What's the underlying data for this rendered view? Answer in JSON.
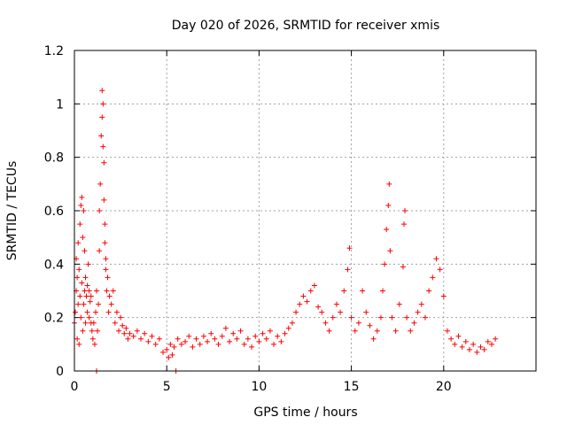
{
  "chart_data": {
    "type": "scatter",
    "title": "Day 020 of 2026, SRMTID for receiver xmis",
    "xlabel": "GPS time / hours",
    "ylabel": "SRMTID / TECUs",
    "xlim": [
      0,
      25
    ],
    "ylim": [
      0,
      1.2
    ],
    "xticks": [
      0,
      5,
      10,
      15,
      20
    ],
    "xtick_labels": [
      "0",
      "5",
      "10",
      "15",
      "20"
    ],
    "yticks": [
      0,
      0.2,
      0.4,
      0.6,
      0.8,
      1.0,
      1.2
    ],
    "ytick_labels": [
      "0",
      "0.2",
      "0.4",
      "0.6",
      "0.8",
      "1",
      "1.2"
    ],
    "grid": true,
    "marker": "+",
    "series": [
      {
        "name": "SRMTID",
        "color": "#ff0000",
        "points": [
          [
            0.0,
            0.18
          ],
          [
            0.05,
            0.22
          ],
          [
            0.1,
            0.3
          ],
          [
            0.1,
            0.42
          ],
          [
            0.15,
            0.35
          ],
          [
            0.15,
            0.12
          ],
          [
            0.2,
            0.25
          ],
          [
            0.2,
            0.48
          ],
          [
            0.25,
            0.38
          ],
          [
            0.25,
            0.1
          ],
          [
            0.3,
            0.55
          ],
          [
            0.3,
            0.28
          ],
          [
            0.35,
            0.62
          ],
          [
            0.35,
            0.2
          ],
          [
            0.4,
            0.65
          ],
          [
            0.4,
            0.33
          ],
          [
            0.45,
            0.5
          ],
          [
            0.45,
            0.15
          ],
          [
            0.5,
            0.6
          ],
          [
            0.5,
            0.25
          ],
          [
            0.55,
            0.45
          ],
          [
            0.55,
            0.3
          ],
          [
            0.6,
            0.35
          ],
          [
            0.6,
            0.18
          ],
          [
            0.65,
            0.28
          ],
          [
            0.7,
            0.22
          ],
          [
            0.7,
            0.32
          ],
          [
            0.75,
            0.4
          ],
          [
            0.8,
            0.3
          ],
          [
            0.8,
            0.2
          ],
          [
            0.85,
            0.26
          ],
          [
            0.9,
            0.18
          ],
          [
            0.9,
            0.28
          ],
          [
            0.95,
            0.15
          ],
          [
            1.0,
            0.12
          ],
          [
            1.05,
            0.18
          ],
          [
            1.1,
            0.1
          ],
          [
            1.15,
            0.22
          ],
          [
            1.2,
            0.3
          ],
          [
            1.2,
            0.0
          ],
          [
            1.25,
            0.15
          ],
          [
            1.3,
            0.25
          ],
          [
            1.35,
            0.45
          ],
          [
            1.35,
            0.6
          ],
          [
            1.4,
            0.7
          ],
          [
            1.45,
            0.88
          ],
          [
            1.5,
            1.05
          ],
          [
            1.5,
            0.95
          ],
          [
            1.55,
            1.0
          ],
          [
            1.55,
            0.84
          ],
          [
            1.6,
            0.78
          ],
          [
            1.6,
            0.64
          ],
          [
            1.65,
            0.55
          ],
          [
            1.65,
            0.48
          ],
          [
            1.7,
            0.42
          ],
          [
            1.7,
            0.38
          ],
          [
            1.75,
            0.3
          ],
          [
            1.8,
            0.35
          ],
          [
            1.85,
            0.22
          ],
          [
            1.9,
            0.28
          ],
          [
            2.0,
            0.25
          ],
          [
            2.1,
            0.3
          ],
          [
            2.2,
            0.18
          ],
          [
            2.3,
            0.22
          ],
          [
            2.4,
            0.15
          ],
          [
            2.5,
            0.2
          ],
          [
            2.6,
            0.17
          ],
          [
            2.7,
            0.14
          ],
          [
            2.8,
            0.16
          ],
          [
            2.9,
            0.12
          ],
          [
            3.0,
            0.14
          ],
          [
            3.2,
            0.13
          ],
          [
            3.4,
            0.15
          ],
          [
            3.6,
            0.12
          ],
          [
            3.8,
            0.14
          ],
          [
            4.0,
            0.11
          ],
          [
            4.2,
            0.13
          ],
          [
            4.4,
            0.1
          ],
          [
            4.6,
            0.12
          ],
          [
            4.8,
            0.07
          ],
          [
            5.0,
            0.08
          ],
          [
            5.1,
            0.05
          ],
          [
            5.2,
            0.1
          ],
          [
            5.3,
            0.06
          ],
          [
            5.4,
            0.09
          ],
          [
            5.5,
            0.0
          ],
          [
            5.6,
            0.12
          ],
          [
            5.8,
            0.1
          ],
          [
            6.0,
            0.11
          ],
          [
            6.2,
            0.13
          ],
          [
            6.4,
            0.09
          ],
          [
            6.6,
            0.12
          ],
          [
            6.8,
            0.1
          ],
          [
            7.0,
            0.13
          ],
          [
            7.2,
            0.11
          ],
          [
            7.4,
            0.14
          ],
          [
            7.6,
            0.12
          ],
          [
            7.8,
            0.1
          ],
          [
            8.0,
            0.13
          ],
          [
            8.2,
            0.16
          ],
          [
            8.4,
            0.11
          ],
          [
            8.6,
            0.14
          ],
          [
            8.8,
            0.12
          ],
          [
            9.0,
            0.15
          ],
          [
            9.2,
            0.1
          ],
          [
            9.4,
            0.12
          ],
          [
            9.6,
            0.09
          ],
          [
            9.8,
            0.13
          ],
          [
            10.0,
            0.11
          ],
          [
            10.2,
            0.14
          ],
          [
            10.4,
            0.12
          ],
          [
            10.6,
            0.15
          ],
          [
            10.8,
            0.1
          ],
          [
            11.0,
            0.13
          ],
          [
            11.2,
            0.11
          ],
          [
            11.4,
            0.14
          ],
          [
            11.6,
            0.16
          ],
          [
            11.8,
            0.18
          ],
          [
            12.0,
            0.22
          ],
          [
            12.2,
            0.25
          ],
          [
            12.4,
            0.28
          ],
          [
            12.6,
            0.26
          ],
          [
            12.8,
            0.3
          ],
          [
            13.0,
            0.32
          ],
          [
            13.2,
            0.24
          ],
          [
            13.4,
            0.22
          ],
          [
            13.6,
            0.18
          ],
          [
            13.8,
            0.15
          ],
          [
            14.0,
            0.2
          ],
          [
            14.2,
            0.25
          ],
          [
            14.4,
            0.22
          ],
          [
            14.6,
            0.3
          ],
          [
            14.8,
            0.38
          ],
          [
            14.9,
            0.46
          ],
          [
            15.0,
            0.2
          ],
          [
            15.2,
            0.15
          ],
          [
            15.4,
            0.18
          ],
          [
            15.6,
            0.3
          ],
          [
            15.8,
            0.22
          ],
          [
            16.0,
            0.17
          ],
          [
            16.2,
            0.12
          ],
          [
            16.4,
            0.15
          ],
          [
            16.6,
            0.2
          ],
          [
            16.7,
            0.3
          ],
          [
            16.8,
            0.4
          ],
          [
            16.9,
            0.53
          ],
          [
            17.0,
            0.62
          ],
          [
            17.05,
            0.7
          ],
          [
            17.1,
            0.45
          ],
          [
            17.2,
            0.2
          ],
          [
            17.4,
            0.15
          ],
          [
            17.6,
            0.25
          ],
          [
            17.8,
            0.39
          ],
          [
            17.85,
            0.55
          ],
          [
            17.9,
            0.6
          ],
          [
            18.0,
            0.2
          ],
          [
            18.2,
            0.15
          ],
          [
            18.4,
            0.18
          ],
          [
            18.6,
            0.22
          ],
          [
            18.8,
            0.25
          ],
          [
            19.0,
            0.2
          ],
          [
            19.2,
            0.3
          ],
          [
            19.4,
            0.35
          ],
          [
            19.6,
            0.42
          ],
          [
            19.8,
            0.38
          ],
          [
            20.0,
            0.28
          ],
          [
            20.2,
            0.15
          ],
          [
            20.4,
            0.12
          ],
          [
            20.6,
            0.1
          ],
          [
            20.8,
            0.13
          ],
          [
            21.0,
            0.09
          ],
          [
            21.2,
            0.11
          ],
          [
            21.4,
            0.08
          ],
          [
            21.6,
            0.1
          ],
          [
            21.8,
            0.07
          ],
          [
            22.0,
            0.09
          ],
          [
            22.2,
            0.08
          ],
          [
            22.4,
            0.11
          ],
          [
            22.6,
            0.1
          ],
          [
            22.8,
            0.12
          ]
        ]
      }
    ]
  }
}
